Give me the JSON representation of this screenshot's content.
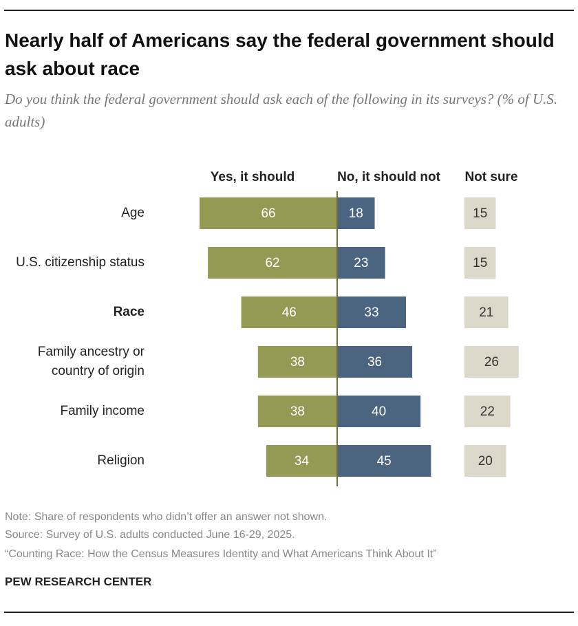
{
  "chart_data": {
    "type": "diverging_bar",
    "title": "Nearly half of Americans say the federal government should ask about race",
    "subtitle": "Do you think the federal government should ask each of the following in its surveys? (% of U.S. adults)",
    "categories": [
      "Age",
      "U.S. citizenship status",
      "Race",
      "Family ancestry or country of origin",
      "Family income",
      "Religion"
    ],
    "bold_category_index": 2,
    "series": [
      {
        "name": "Yes, it should",
        "color": "#949a53",
        "values": [
          66,
          62,
          46,
          38,
          38,
          34
        ]
      },
      {
        "name": "No, it should not",
        "color": "#4b6580",
        "values": [
          18,
          23,
          33,
          36,
          40,
          45
        ]
      },
      {
        "name": "Not sure",
        "color": "#dbd7c9",
        "values": [
          15,
          15,
          21,
          26,
          22,
          20
        ]
      }
    ],
    "notes": [
      "Note: Share of respondents who didn’t offer an answer not shown.",
      "Source: Survey of U.S. adults conducted June 16-29, 2025.",
      "“Counting Race: How the Census Measures Identity and What Americans Think About It”"
    ],
    "source": "PEW RESEARCH CENTER"
  }
}
